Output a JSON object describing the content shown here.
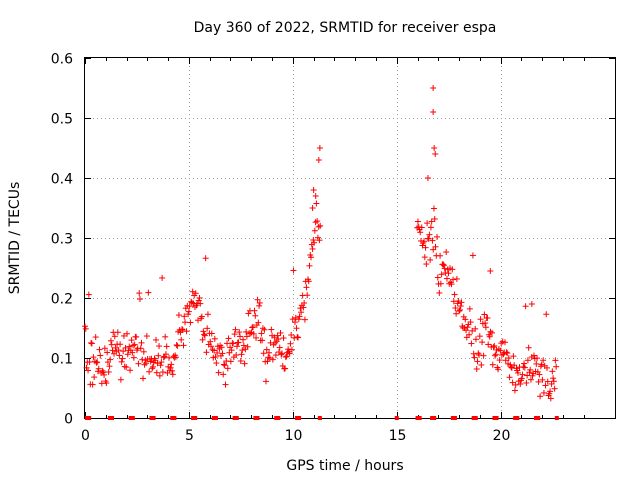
{
  "chart_data": {
    "type": "scatter",
    "title": "Day 360 of 2022, SRMTID for receiver espa",
    "xlabel": "GPS time / hours",
    "ylabel": "SRMTID / TECUs",
    "xlim": [
      0,
      25.5
    ],
    "ylim": [
      0,
      0.6
    ],
    "xticks": [
      0,
      5,
      10,
      15,
      20
    ],
    "xtick_labels": [
      "0",
      "5",
      "10",
      "15",
      "20"
    ],
    "yticks": [
      0,
      0.1,
      0.2,
      0.3,
      0.4,
      0.5,
      0.6
    ],
    "ytick_labels": [
      "0",
      "0.1",
      "0.2",
      "0.3",
      "0.4",
      "0.5",
      "0.6"
    ],
    "grid": true,
    "series": [
      {
        "name": "SRMTID",
        "marker": "plus",
        "color": "#ff0000",
        "profile": [
          [
            0.0,
            0.13
          ],
          [
            0.3,
            0.09
          ],
          [
            0.6,
            0.1
          ],
          [
            0.9,
            0.08
          ],
          [
            1.2,
            0.1
          ],
          [
            1.5,
            0.13
          ],
          [
            1.8,
            0.1
          ],
          [
            2.1,
            0.11
          ],
          [
            2.4,
            0.12
          ],
          [
            2.7,
            0.11
          ],
          [
            3.0,
            0.11
          ],
          [
            3.3,
            0.1
          ],
          [
            3.6,
            0.09
          ],
          [
            3.9,
            0.1
          ],
          [
            4.2,
            0.08
          ],
          [
            4.5,
            0.14
          ],
          [
            4.8,
            0.15
          ],
          [
            5.1,
            0.18
          ],
          [
            5.4,
            0.2
          ],
          [
            5.7,
            0.14
          ],
          [
            6.0,
            0.13
          ],
          [
            6.3,
            0.12
          ],
          [
            6.6,
            0.1
          ],
          [
            6.9,
            0.11
          ],
          [
            7.2,
            0.12
          ],
          [
            7.5,
            0.11
          ],
          [
            7.8,
            0.13
          ],
          [
            8.1,
            0.15
          ],
          [
            8.4,
            0.17
          ],
          [
            8.7,
            0.1
          ],
          [
            9.0,
            0.12
          ],
          [
            9.3,
            0.14
          ],
          [
            9.6,
            0.09
          ],
          [
            9.9,
            0.12
          ],
          [
            10.2,
            0.15
          ],
          [
            10.5,
            0.19
          ],
          [
            10.8,
            0.24
          ],
          [
            11.0,
            0.3
          ],
          [
            11.2,
            0.32
          ],
          [
            16.0,
            0.32
          ],
          [
            16.3,
            0.29
          ],
          [
            16.6,
            0.3
          ],
          [
            16.8,
            0.33
          ],
          [
            17.0,
            0.24
          ],
          [
            17.3,
            0.26
          ],
          [
            17.6,
            0.23
          ],
          [
            17.9,
            0.2
          ],
          [
            18.2,
            0.16
          ],
          [
            18.5,
            0.14
          ],
          [
            18.8,
            0.11
          ],
          [
            19.1,
            0.13
          ],
          [
            19.4,
            0.15
          ],
          [
            19.7,
            0.12
          ],
          [
            20.0,
            0.11
          ],
          [
            20.3,
            0.1
          ],
          [
            20.6,
            0.07
          ],
          [
            20.9,
            0.07
          ],
          [
            21.2,
            0.08
          ],
          [
            21.5,
            0.09
          ],
          [
            21.8,
            0.08
          ],
          [
            22.1,
            0.07
          ],
          [
            22.4,
            0.06
          ],
          [
            22.7,
            0.07
          ]
        ],
        "gaps": [
          [
            11.35,
            15.95
          ]
        ],
        "sample_step_hours": 0.0167,
        "scatter_amplitude": 0.045
      }
    ],
    "baseline_markers": {
      "y": 0,
      "x": [
        0.1,
        0.2,
        1.2,
        1.3,
        2.2,
        2.3,
        3.2,
        3.3,
        4.2,
        4.3,
        5.2,
        5.3,
        6.2,
        6.3,
        7.2,
        7.3,
        8.2,
        8.3,
        9.2,
        9.3,
        10.2,
        10.3,
        11.3,
        15.0,
        16.0,
        16.1,
        16.7,
        16.8,
        17.7,
        17.8,
        18.7,
        18.8,
        19.7,
        19.8,
        20.7,
        20.8,
        21.7,
        21.8,
        22.7
      ]
    }
  }
}
